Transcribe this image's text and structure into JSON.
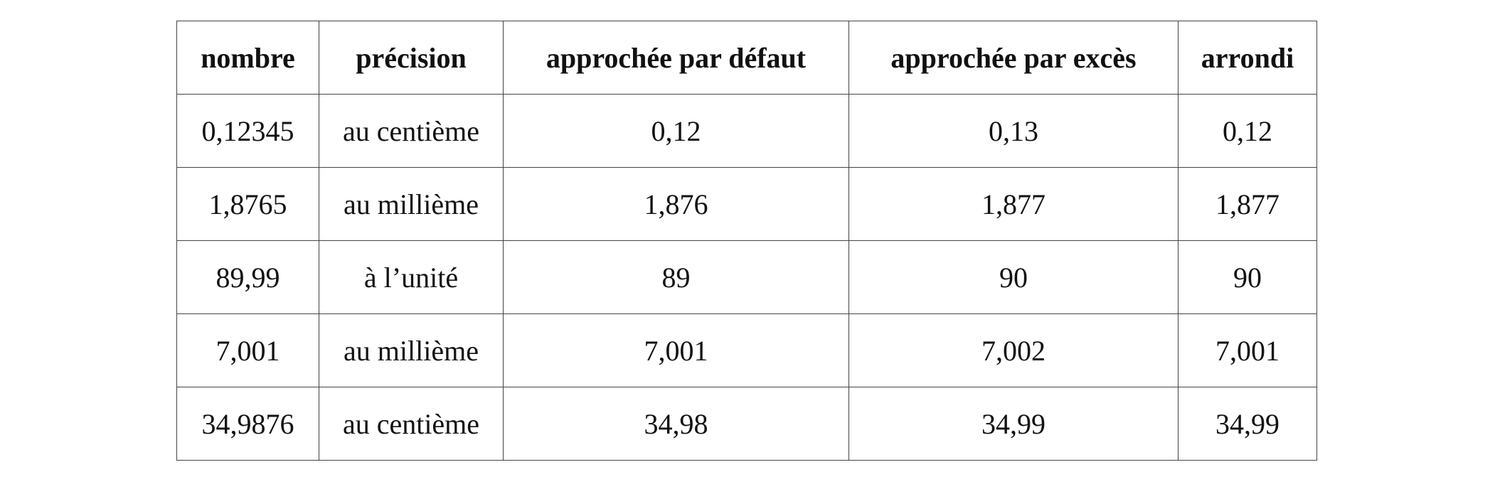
{
  "table": {
    "headers": [
      "nombre",
      "précision",
      "approchée par défaut",
      "approchée par excès",
      "arrondi"
    ],
    "rows": [
      [
        "0,12345",
        "au centième",
        "0,12",
        "0,13",
        "0,12"
      ],
      [
        "1,8765",
        "au millième",
        "1,876",
        "1,877",
        "1,877"
      ],
      [
        "89,99",
        "à l’unité",
        "89",
        "90",
        "90"
      ],
      [
        "7,001",
        "au millième",
        "7,001",
        "7,002",
        "7,001"
      ],
      [
        "34,9876",
        "au centième",
        "34,98",
        "34,99",
        "34,99"
      ]
    ]
  }
}
